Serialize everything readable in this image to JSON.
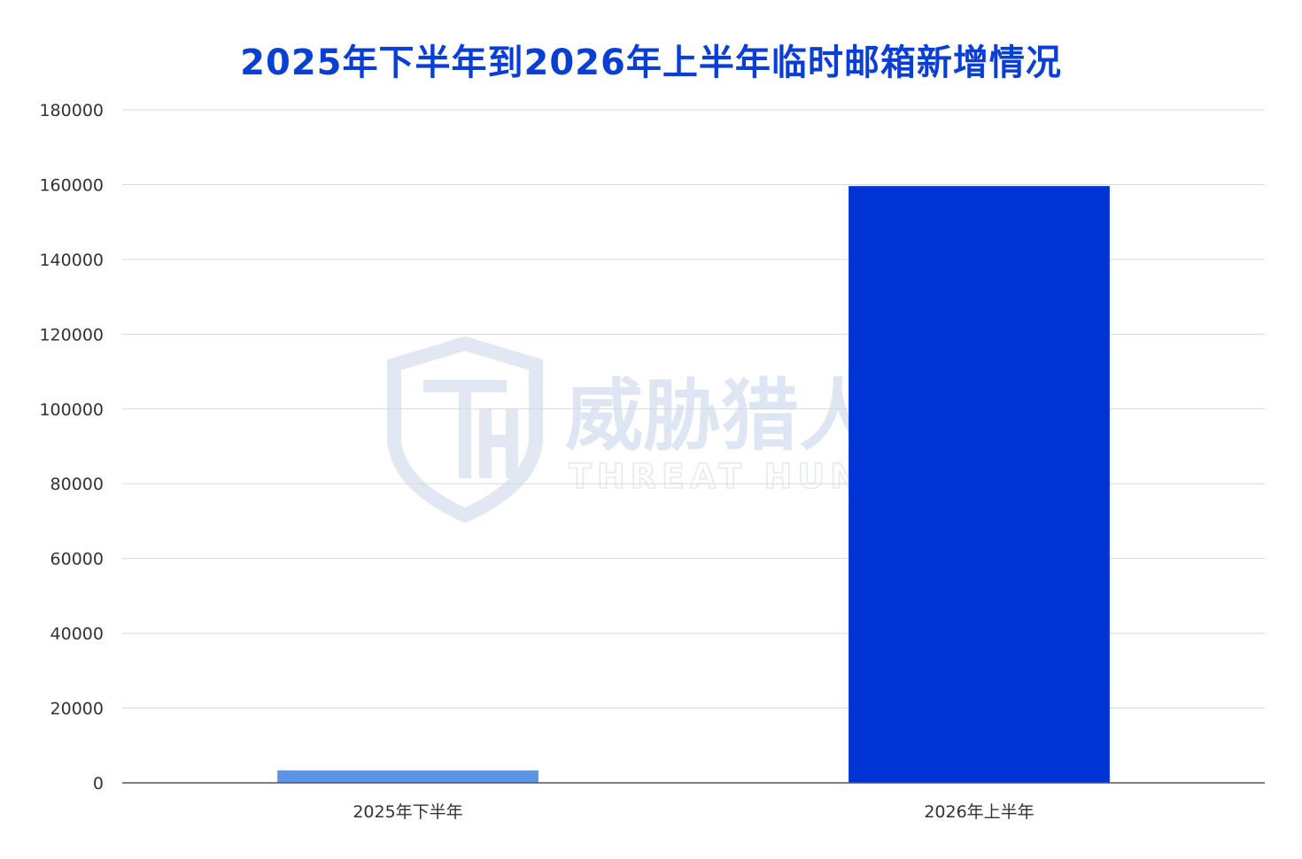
{
  "chart_data": {
    "type": "bar",
    "title": "2025年下半年到2026年上半年临时邮箱新增情况",
    "categories": [
      "2025年下半年",
      "2026年上半年"
    ],
    "values": [
      3300,
      159600
    ],
    "bar_colors": [
      "#5b93e6",
      "#0033d6"
    ],
    "title_color": "#0a3fd6",
    "ylim": [
      0,
      180000
    ],
    "yticks": [
      "0",
      "20000",
      "40000",
      "60000",
      "80000",
      "100000",
      "120000",
      "140000",
      "160000",
      "180000"
    ],
    "grid": true,
    "legend": "none"
  },
  "watermark": {
    "text_cn": "威胁猎人",
    "text_en": "THREAT HUNTER",
    "logo": "shield-th-logo"
  }
}
